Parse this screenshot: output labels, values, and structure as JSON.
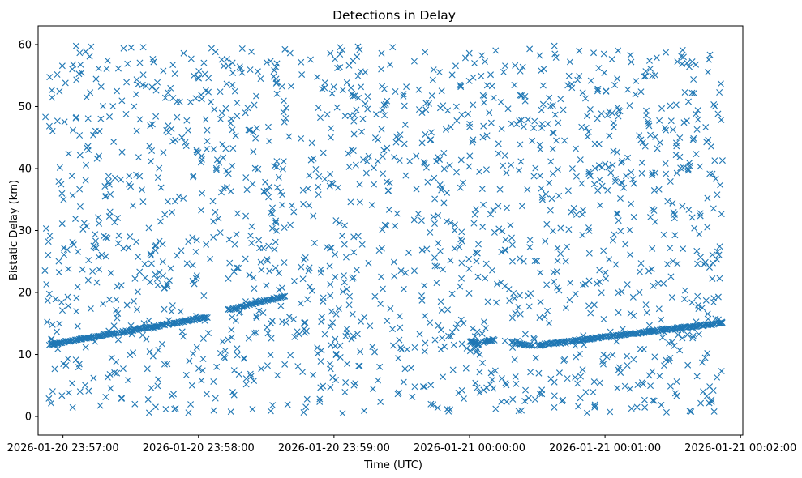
{
  "chart_data": {
    "type": "scatter",
    "title": "Detections in Delay",
    "xlabel": "Time (UTC)",
    "ylabel": "Bistatic Delay (km)",
    "marker": "x",
    "color": "#1f77b4",
    "x_unit": "seconds since 2026-01-20 23:57:00 UTC",
    "xlim": [
      -11,
      301
    ],
    "ylim": [
      -3,
      63
    ],
    "x_ticks": [
      {
        "value": 0,
        "label": "2026-01-20 23:57:00"
      },
      {
        "value": 60,
        "label": "2026-01-20 23:58:00"
      },
      {
        "value": 120,
        "label": "2026-01-20 23:59:00"
      },
      {
        "value": 180,
        "label": "2026-01-21 00:00:00"
      },
      {
        "value": 240,
        "label": "2026-01-21 00:01:00"
      },
      {
        "value": 300,
        "label": "2026-01-21 00:02:00"
      }
    ],
    "y_ticks": [
      {
        "value": 0,
        "label": "0"
      },
      {
        "value": 10,
        "label": "10"
      },
      {
        "value": 20,
        "label": "20"
      },
      {
        "value": 30,
        "label": "30"
      },
      {
        "value": 40,
        "label": "40"
      },
      {
        "value": 50,
        "label": "50"
      },
      {
        "value": 60,
        "label": "60"
      }
    ],
    "track_segments": [
      {
        "x_start": -6,
        "x_end": 64,
        "y_start": 11.6,
        "y_end": 16.0,
        "count": 150
      },
      {
        "x_start": 73,
        "x_end": 98,
        "y_start": 17.2,
        "y_end": 19.4,
        "count": 45
      },
      {
        "x_start": 180,
        "x_end": 184,
        "y_start": 12.2,
        "y_end": 11.6,
        "count": 18
      },
      {
        "x_start": 186,
        "x_end": 191,
        "y_start": 12.0,
        "y_end": 12.4,
        "count": 14
      },
      {
        "x_start": 199,
        "x_end": 208,
        "y_start": 12.0,
        "y_end": 11.4,
        "count": 16
      },
      {
        "x_start": 210,
        "x_end": 292,
        "y_start": 11.5,
        "y_end": 15.1,
        "count": 175
      }
    ],
    "noise_points": {
      "count": 1650,
      "x_range": [
        -8,
        292
      ],
      "y_range": [
        0.5,
        59.8
      ]
    }
  }
}
